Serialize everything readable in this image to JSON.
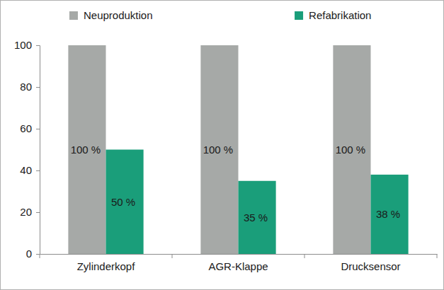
{
  "chart_data": {
    "type": "bar",
    "categories": [
      "Zylinderkopf",
      "AGR-Klappe",
      "Drucksensor"
    ],
    "series": [
      {
        "name": "Neuproduktion",
        "color": "#a6a9a7",
        "values": [
          100,
          100,
          100
        ],
        "value_labels": [
          "100 %",
          "100 %",
          "100 %"
        ]
      },
      {
        "name": "Refabrikation",
        "color": "#1a9e7a",
        "values": [
          50,
          35,
          38
        ],
        "value_labels": [
          "50 %",
          "35 %",
          "38 %"
        ]
      }
    ],
    "ylim": [
      0,
      100
    ],
    "yticks": [
      0,
      20,
      40,
      60,
      80,
      100
    ],
    "grid": false,
    "legend": "top",
    "data_labels": true
  }
}
